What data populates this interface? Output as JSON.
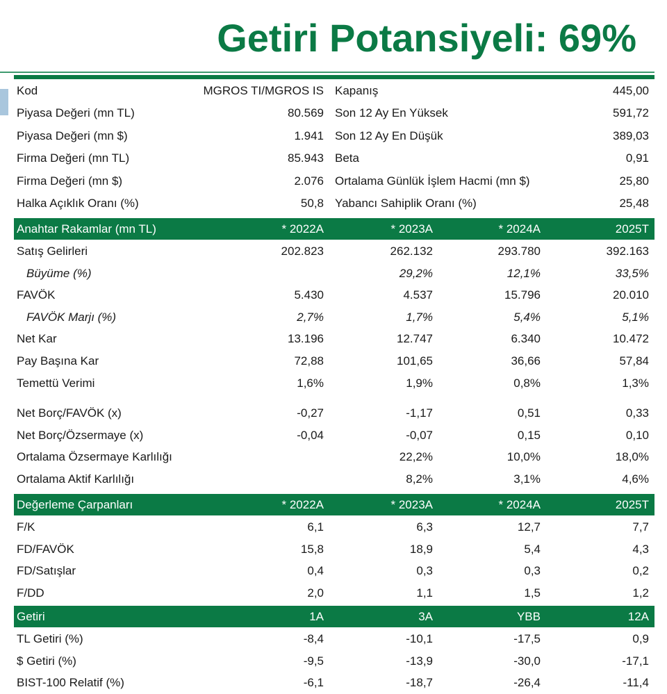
{
  "title": "Getiri Potansiyeli: 69%",
  "info": [
    {
      "l": "Kod",
      "v": "MGROS TI/MGROS IS",
      "l2": "Kapanış",
      "v2": "445,00"
    },
    {
      "l": "Piyasa Değeri (mn TL)",
      "v": "80.569",
      "l2": "Son 12 Ay En Yüksek",
      "v2": "591,72"
    },
    {
      "l": "Piyasa Değeri (mn $)",
      "v": "1.941",
      "l2": "Son 12 Ay En Düşük",
      "v2": "389,03"
    },
    {
      "l": "Firma Değeri (mn TL)",
      "v": "85.943",
      "l2": "Beta",
      "v2": "0,91"
    },
    {
      "l": "Firma Değeri (mn $)",
      "v": "2.076",
      "l2": "Ortalama Günlük İşlem Hacmi (mn $)",
      "v2": "25,80"
    },
    {
      "l": "Halka Açıklık Oranı (%)",
      "v": "50,8",
      "l2": "Yabancı Sahiplik Oranı (%)",
      "v2": "25,48"
    }
  ],
  "sections": [
    {
      "header": [
        "Anahtar Rakamlar (mn TL)",
        "* 2022A",
        "* 2023A",
        "* 2024A",
        "2025T"
      ],
      "rows": [
        {
          "c": [
            "Satış Gelirleri",
            "202.823",
            "262.132",
            "293.780",
            "392.163"
          ]
        },
        {
          "c": [
            "Büyüme (%)",
            "",
            "29,2%",
            "12,1%",
            "33,5%"
          ],
          "italic": true
        },
        {
          "c": [
            "FAVÖK",
            "5.430",
            "4.537",
            "15.796",
            "20.010"
          ]
        },
        {
          "c": [
            "FAVÖK Marjı (%)",
            "2,7%",
            "1,7%",
            "5,4%",
            "5,1%"
          ],
          "italic": true
        },
        {
          "c": [
            "Net Kar",
            "13.196",
            "12.747",
            "6.340",
            "10.472"
          ]
        },
        {
          "c": [
            "Pay Başına Kar",
            "72,88",
            "101,65",
            "36,66",
            "57,84"
          ]
        },
        {
          "c": [
            "Temettü Verimi",
            "1,6%",
            "1,9%",
            "0,8%",
            "1,3%"
          ]
        },
        {
          "c": [
            "Net Borç/FAVÖK (x)",
            "-0,27",
            "-1,17",
            "0,51",
            "0,33"
          ],
          "gap": true
        },
        {
          "c": [
            "Net Borç/Özsermaye (x)",
            "-0,04",
            "-0,07",
            "0,15",
            "0,10"
          ]
        },
        {
          "c": [
            "Ortalama Özsermaye Karlılığı",
            "",
            "22,2%",
            "10,0%",
            "18,0%"
          ]
        },
        {
          "c": [
            "Ortalama Aktif Karlılığı",
            "",
            "8,2%",
            "3,1%",
            "4,6%"
          ]
        }
      ]
    },
    {
      "header": [
        "Değerleme Çarpanları",
        "* 2022A",
        "* 2023A",
        "* 2024A",
        "2025T"
      ],
      "rows": [
        {
          "c": [
            "F/K",
            "6,1",
            "6,3",
            "12,7",
            "7,7"
          ]
        },
        {
          "c": [
            "FD/FAVÖK",
            "15,8",
            "18,9",
            "5,4",
            "4,3"
          ]
        },
        {
          "c": [
            "FD/Satışlar",
            "0,4",
            "0,3",
            "0,3",
            "0,2"
          ]
        },
        {
          "c": [
            "F/DD",
            "2,0",
            "1,1",
            "1,5",
            "1,2"
          ]
        }
      ]
    },
    {
      "header": [
        "Getiri",
        "1A",
        "3A",
        "YBB",
        "12A"
      ],
      "rows": [
        {
          "c": [
            "TL Getiri (%)",
            "-8,4",
            "-10,1",
            "-17,5",
            "0,9"
          ]
        },
        {
          "c": [
            "$ Getiri (%)",
            "-9,5",
            "-13,9",
            "-30,0",
            "-17,1"
          ]
        },
        {
          "c": [
            "BIST-100 Relatif (%)",
            "-6,1",
            "-18,7",
            "-26,4",
            "-11,4"
          ]
        }
      ]
    }
  ],
  "colors": {
    "brand_green": "#0b7a45",
    "accent_blue": "#a9c6dd"
  }
}
